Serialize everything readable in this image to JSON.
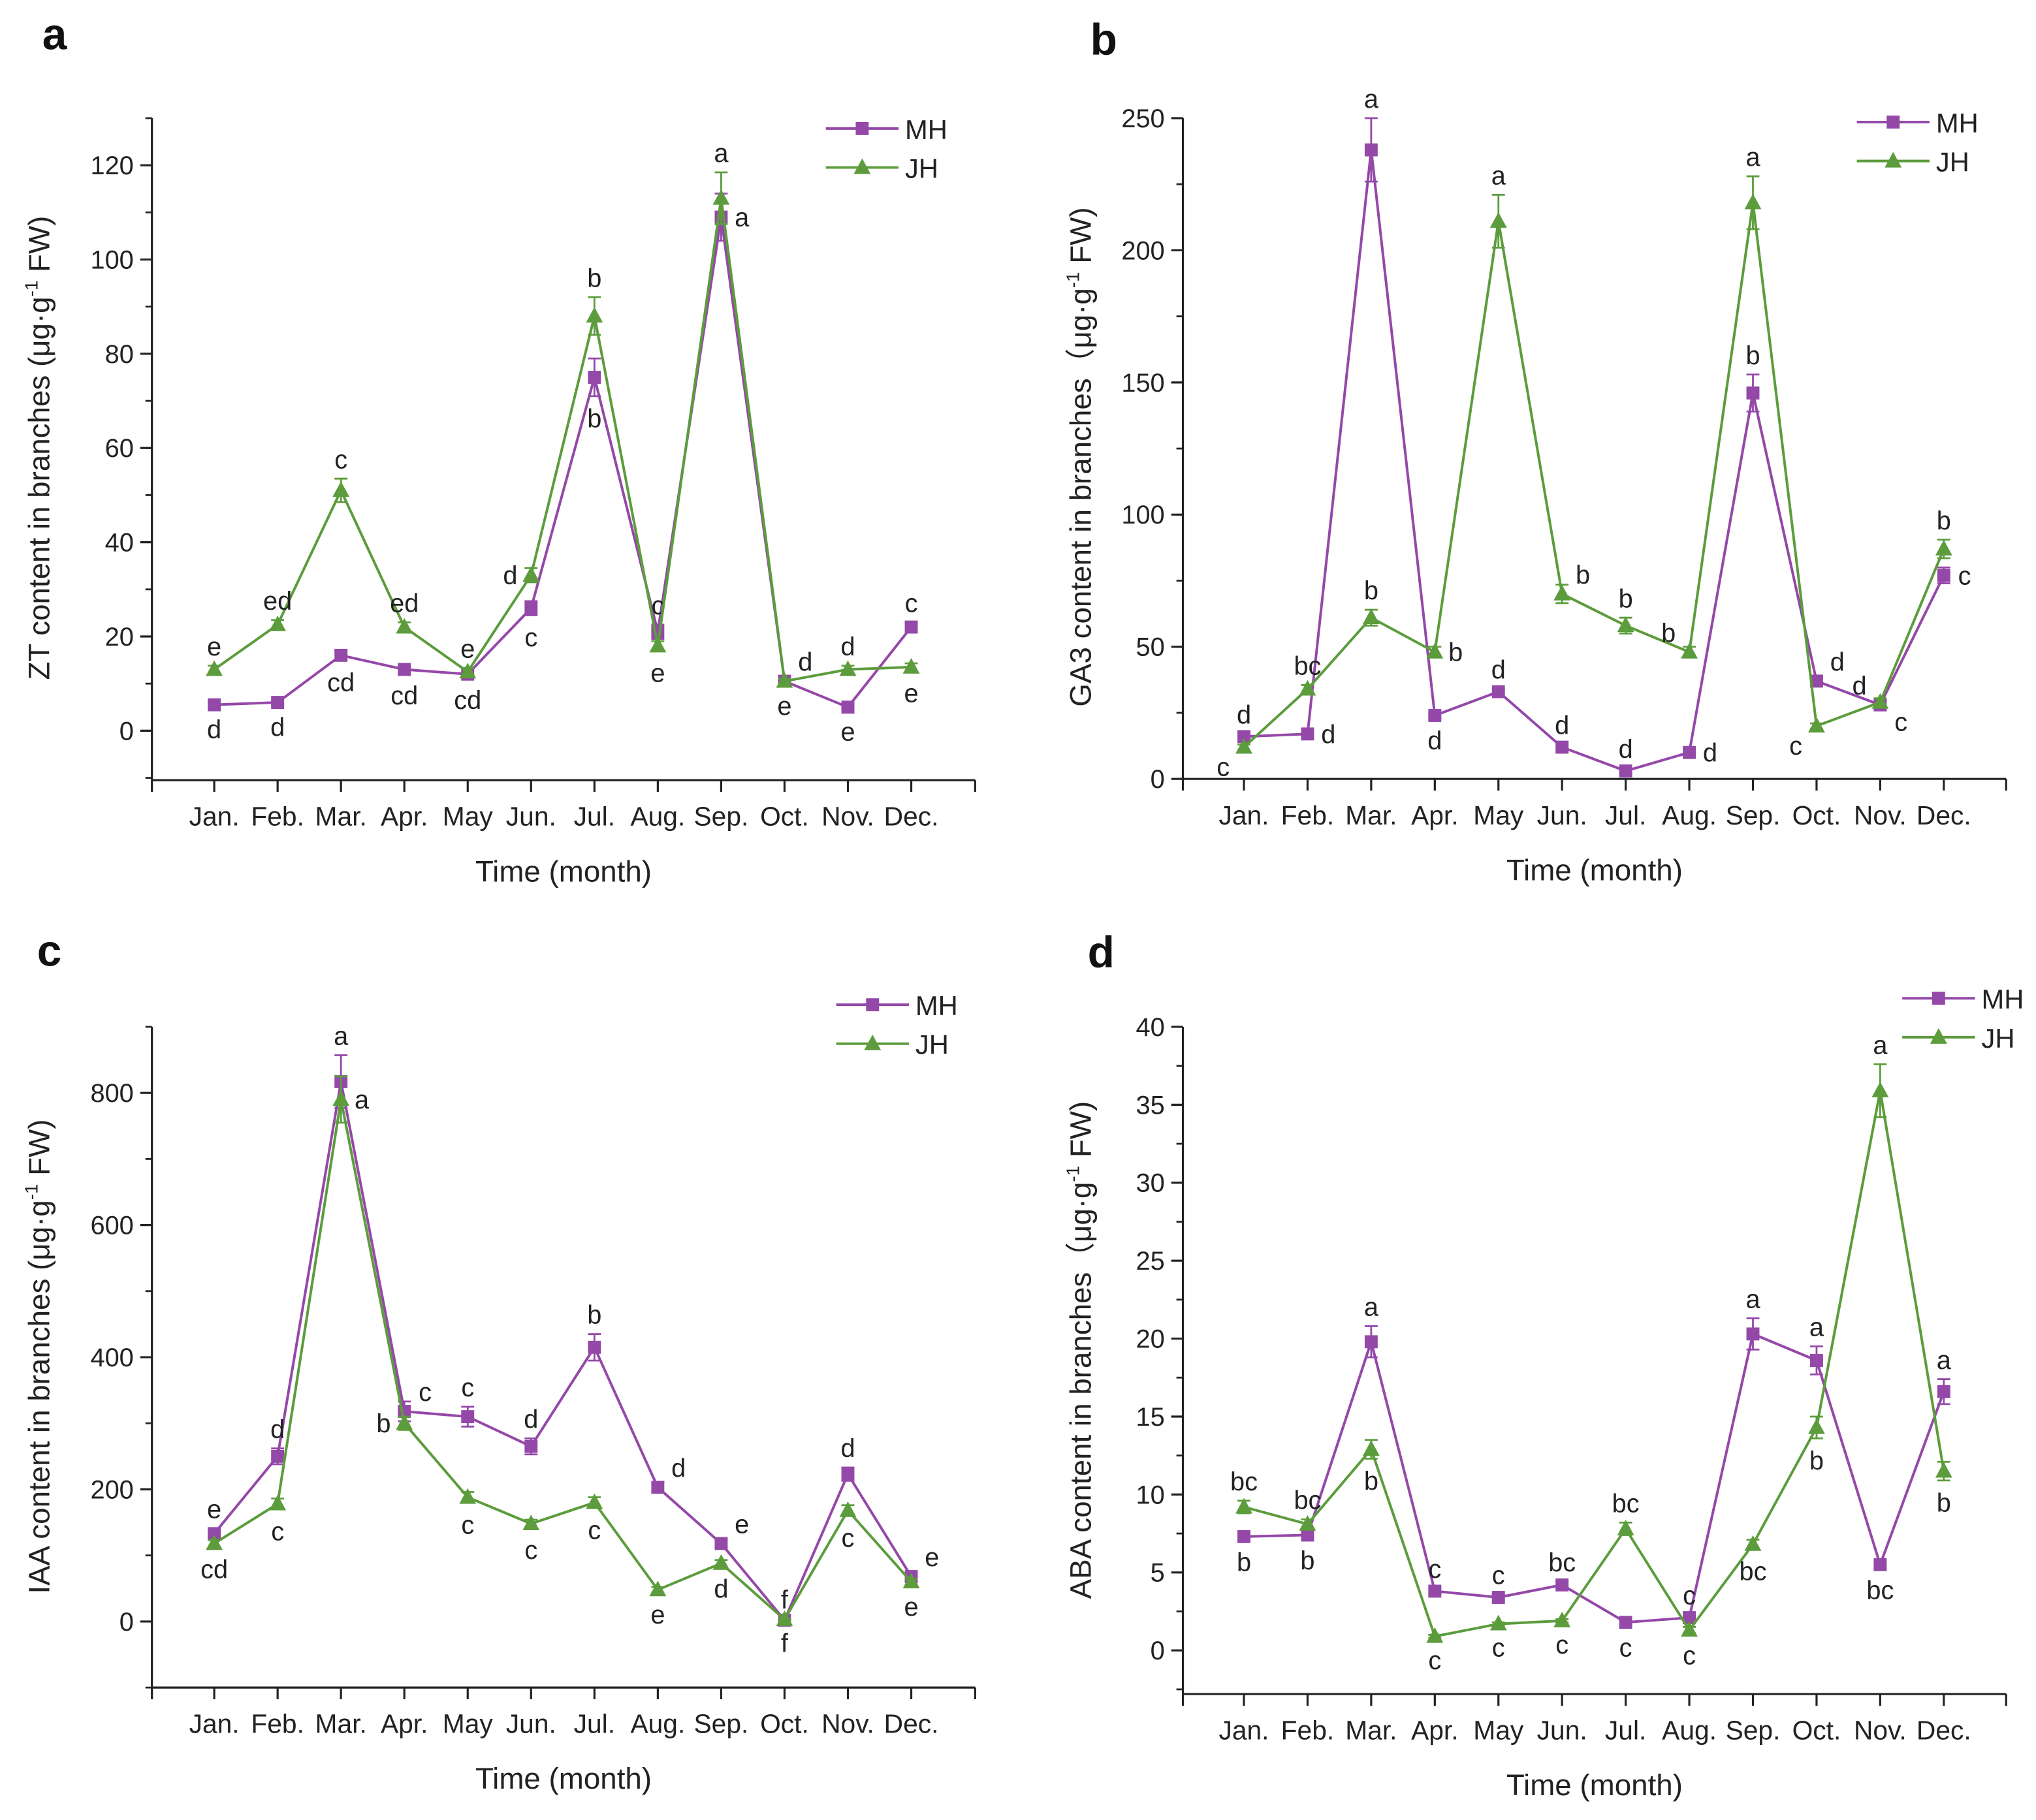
{
  "colors": {
    "MH": "#9448a8",
    "JH": "#5c9c3c"
  },
  "legend": [
    "MH",
    "JH"
  ],
  "chart_data": [
    {
      "panel": "a",
      "type": "line",
      "categories": [
        "Jan.",
        "Feb.",
        "Mar.",
        "Apr.",
        "May",
        "Jun.",
        "Jul.",
        "Aug.",
        "Sep.",
        "Oct.",
        "Nov.",
        "Dec."
      ],
      "xlabel": "Time (month)",
      "ylabel": {
        "main": "ZT content in branches (μg·g",
        "sup": "-1",
        "end": " FW)"
      },
      "ylim": [
        -10.5,
        130
      ],
      "yticks": [
        0,
        20,
        40,
        60,
        80,
        100,
        120
      ],
      "yminor": 10,
      "grid": false,
      "legend_position": "top-right",
      "series": [
        {
          "name": "MH",
          "marker": "square",
          "values": [
            5.5,
            6,
            16,
            13,
            12,
            26,
            75,
            21,
            109,
            10.5,
            5,
            22
          ],
          "errors": [
            0.5,
            0.5,
            1,
            0.8,
            0.8,
            1.5,
            4,
            1.5,
            5,
            0.8,
            0.5,
            1
          ],
          "letters": [
            "d",
            "d",
            "cd",
            "cd",
            "cd",
            "c",
            "b",
            "c",
            "a",
            "d",
            "e",
            "c"
          ]
        },
        {
          "name": "JH",
          "marker": "triangle",
          "values": [
            13,
            22.5,
            51,
            22,
            12.5,
            33,
            88,
            18,
            113,
            10.5,
            13,
            13.5
          ],
          "errors": [
            0.8,
            1,
            2.5,
            1,
            0.8,
            1.5,
            4,
            1,
            5.5,
            0.5,
            0.8,
            0.8
          ],
          "letters": [
            "e",
            "ed",
            "c",
            "ed",
            "e",
            "d",
            "b",
            "e",
            "a",
            "e",
            "d",
            "e"
          ]
        }
      ]
    },
    {
      "panel": "b",
      "type": "line",
      "categories": [
        "Jan.",
        "Feb.",
        "Mar.",
        "Apr.",
        "May",
        "Jun.",
        "Jul.",
        "Aug.",
        "Sep.",
        "Oct.",
        "Nov.",
        "Dec."
      ],
      "xlabel": "Time (month)",
      "ylabel": {
        "main": "GA3 content in branches（μg·g",
        "sup": "-1",
        "end": " FW)"
      },
      "ylim": [
        0,
        250
      ],
      "yticks": [
        0,
        50,
        100,
        150,
        200,
        250
      ],
      "yminor": 25,
      "grid": false,
      "legend_position": "top-right",
      "series": [
        {
          "name": "MH",
          "marker": "square",
          "values": [
            16,
            17,
            238,
            24,
            33,
            12,
            3,
            10,
            146,
            37,
            28,
            77
          ],
          "errors": [
            1,
            1,
            12,
            1,
            1,
            1,
            1,
            1,
            7,
            1.5,
            1.5,
            3
          ],
          "letters": [
            "d",
            "d",
            "a",
            "d",
            "d",
            "d",
            "d",
            "d",
            "b",
            "d",
            "d",
            "c"
          ]
        },
        {
          "name": "JH",
          "marker": "triangle",
          "values": [
            12,
            34,
            61,
            48,
            211,
            70,
            58,
            48,
            218,
            20,
            29,
            87
          ],
          "errors": [
            1,
            1.5,
            3,
            2,
            10,
            3.5,
            3,
            2,
            10,
            1,
            1.5,
            3.5
          ],
          "letters": [
            "c",
            "bc",
            "b",
            "b",
            "a",
            "b",
            "b",
            "b",
            "a",
            "c",
            "c",
            "b"
          ]
        }
      ]
    },
    {
      "panel": "c",
      "type": "line",
      "categories": [
        "Jan.",
        "Feb.",
        "Mar.",
        "Apr.",
        "May",
        "Jun.",
        "Jul.",
        "Aug.",
        "Sep.",
        "Oct.",
        "Nov.",
        "Dec."
      ],
      "xlabel": "Time (month)",
      "ylabel": {
        "main": "IAA content in branches (μg·g",
        "sup": "-1",
        "end": " FW)"
      },
      "ylim": [
        -100,
        900
      ],
      "yticks": [
        0,
        200,
        400,
        600,
        800
      ],
      "yminor": 100,
      "grid": false,
      "legend_position": "top-right",
      "series": [
        {
          "name": "MH",
          "marker": "square",
          "values": [
            133,
            250,
            817,
            318,
            310,
            265,
            415,
            203,
            118,
            2,
            223,
            68
          ],
          "errors": [
            8,
            12,
            40,
            15,
            15,
            12,
            20,
            8,
            6,
            2,
            10,
            5
          ],
          "letters": [
            "e",
            "d",
            "a",
            "c",
            "c",
            "d",
            "b",
            "d",
            "e",
            "f",
            "d",
            "e"
          ]
        },
        {
          "name": "JH",
          "marker": "triangle",
          "values": [
            118,
            178,
            790,
            300,
            188,
            148,
            180,
            48,
            88,
            3,
            168,
            60
          ],
          "errors": [
            5,
            8,
            35,
            10,
            8,
            6,
            8,
            4,
            5,
            2,
            8,
            4
          ],
          "letters": [
            "cd",
            "c",
            "a",
            "b",
            "c",
            "c",
            "c",
            "e",
            "d",
            "f",
            "c",
            "e"
          ]
        }
      ]
    },
    {
      "panel": "d",
      "type": "line",
      "categories": [
        "Jan.",
        "Feb.",
        "Mar.",
        "Apr.",
        "May",
        "Jun.",
        "Jul.",
        "Aug.",
        "Sep.",
        "Oct.",
        "Nov.",
        "Dec."
      ],
      "xlabel": "Time (month)",
      "ylabel": {
        "main": "ABA content in branches（μg·g",
        "sup": "-1",
        "end": " FW)"
      },
      "ylim": [
        -2.8,
        40
      ],
      "yticks": [
        0,
        5,
        10,
        15,
        20,
        25,
        30,
        35,
        40
      ],
      "yminor": 2.5,
      "grid": false,
      "legend_position": "top-right",
      "series": [
        {
          "name": "MH",
          "marker": "square",
          "values": [
            7.3,
            7.4,
            19.8,
            3.8,
            3.4,
            4.2,
            1.8,
            2.1,
            20.3,
            18.6,
            5.5,
            16.6
          ],
          "errors": [
            0.2,
            0.2,
            1,
            0.2,
            0.2,
            0.2,
            0.2,
            0.2,
            1,
            0.9,
            0.2,
            0.8
          ],
          "letters": [
            "b",
            "b",
            "a",
            "c",
            "c",
            "bc",
            "c",
            "c",
            "a",
            "a",
            "bc",
            "a"
          ]
        },
        {
          "name": "JH",
          "marker": "triangle",
          "values": [
            9.2,
            8.1,
            12.9,
            0.9,
            1.7,
            1.9,
            7.8,
            1.3,
            6.8,
            14.3,
            35.9,
            11.5
          ],
          "errors": [
            0.4,
            0.3,
            0.6,
            0.1,
            0.1,
            0.1,
            0.4,
            0.2,
            0.3,
            0.7,
            1.7,
            0.6
          ],
          "letters": [
            "bc",
            "bc",
            "b",
            "c",
            "c",
            "c",
            "bc",
            "c",
            "bc",
            "b",
            "a",
            "b"
          ]
        }
      ]
    }
  ]
}
